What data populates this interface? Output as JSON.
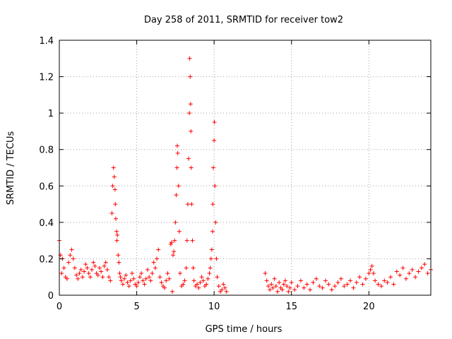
{
  "chart_data": {
    "type": "scatter",
    "title": "Day 258 of 2011, SRMTID for receiver tow2",
    "xlabel": "GPS time / hours",
    "ylabel": "SRMTID / TECUs",
    "xlim": [
      0,
      24
    ],
    "ylim": [
      0,
      1.4
    ],
    "xticks": [
      0,
      5,
      10,
      15,
      20
    ],
    "xtick_labels": [
      "0",
      "5",
      "10",
      "15",
      "20"
    ],
    "yticks": [
      0,
      0.2,
      0.4,
      0.6,
      0.8,
      1.0,
      1.2,
      1.4
    ],
    "ytick_labels": [
      "0",
      "0.2",
      "0.4",
      "0.6",
      "0.8",
      "1",
      "1.2",
      "1.4"
    ],
    "grid": true,
    "marker": "+",
    "series": [
      {
        "name": "tow2",
        "color": "#ff0000",
        "x": [
          0.0,
          0.08,
          0.15,
          0.2,
          0.3,
          0.4,
          0.5,
          0.6,
          0.7,
          0.8,
          0.9,
          1.0,
          1.1,
          1.2,
          1.3,
          1.4,
          1.5,
          1.6,
          1.7,
          1.8,
          1.9,
          2.0,
          2.1,
          2.2,
          2.3,
          2.4,
          2.5,
          2.6,
          2.7,
          2.8,
          2.9,
          3.0,
          3.1,
          3.2,
          3.3,
          3.4,
          3.45,
          3.5,
          3.55,
          3.6,
          3.62,
          3.65,
          3.7,
          3.72,
          3.75,
          3.8,
          3.85,
          3.9,
          3.95,
          4.0,
          4.1,
          4.2,
          4.3,
          4.4,
          4.5,
          4.6,
          4.7,
          4.8,
          4.9,
          5.0,
          5.1,
          5.2,
          5.3,
          5.4,
          5.5,
          5.6,
          5.7,
          5.8,
          5.9,
          6.0,
          6.1,
          6.2,
          6.3,
          6.4,
          6.5,
          6.6,
          6.7,
          6.8,
          6.9,
          7.0,
          7.1,
          7.2,
          7.25,
          7.3,
          7.35,
          7.4,
          7.45,
          7.5,
          7.55,
          7.6,
          7.62,
          7.65,
          7.7,
          7.75,
          7.8,
          7.9,
          8.0,
          8.1,
          8.2,
          8.25,
          8.3,
          8.35,
          8.4,
          8.42,
          8.45,
          8.48,
          8.5,
          8.52,
          8.55,
          8.6,
          8.65,
          8.7,
          8.8,
          8.9,
          9.0,
          9.1,
          9.2,
          9.3,
          9.4,
          9.5,
          9.6,
          9.7,
          9.75,
          9.8,
          9.85,
          9.9,
          9.92,
          9.95,
          10.0,
          10.02,
          10.05,
          10.1,
          10.15,
          10.2,
          10.3,
          10.4,
          10.5,
          10.6,
          10.7,
          10.8,
          13.3,
          13.4,
          13.5,
          13.6,
          13.7,
          13.8,
          13.9,
          14.0,
          14.1,
          14.2,
          14.3,
          14.4,
          14.5,
          14.6,
          14.7,
          14.8,
          14.9,
          15.0,
          15.2,
          15.4,
          15.6,
          15.8,
          16.0,
          16.2,
          16.4,
          16.6,
          16.8,
          17.0,
          17.2,
          17.4,
          17.6,
          17.8,
          18.0,
          18.2,
          18.4,
          18.6,
          18.8,
          19.0,
          19.2,
          19.4,
          19.6,
          19.8,
          20.0,
          20.1,
          20.2,
          20.3,
          20.4,
          20.6,
          20.8,
          21.0,
          21.2,
          21.4,
          21.6,
          21.8,
          22.0,
          22.2,
          22.4,
          22.6,
          22.8,
          23.0,
          23.2,
          23.4,
          23.6,
          23.8,
          24.0
        ],
        "y": [
          0.3,
          0.22,
          0.12,
          0.2,
          0.15,
          0.1,
          0.09,
          0.18,
          0.22,
          0.25,
          0.2,
          0.15,
          0.11,
          0.09,
          0.12,
          0.14,
          0.1,
          0.13,
          0.17,
          0.15,
          0.12,
          0.1,
          0.14,
          0.18,
          0.16,
          0.12,
          0.11,
          0.15,
          0.13,
          0.1,
          0.16,
          0.18,
          0.14,
          0.1,
          0.08,
          0.45,
          0.6,
          0.7,
          0.65,
          0.58,
          0.5,
          0.42,
          0.35,
          0.3,
          0.33,
          0.22,
          0.18,
          0.12,
          0.1,
          0.08,
          0.06,
          0.09,
          0.11,
          0.07,
          0.05,
          0.08,
          0.12,
          0.09,
          0.06,
          0.05,
          0.07,
          0.1,
          0.12,
          0.08,
          0.06,
          0.09,
          0.14,
          0.1,
          0.08,
          0.12,
          0.18,
          0.15,
          0.2,
          0.25,
          0.1,
          0.07,
          0.05,
          0.04,
          0.08,
          0.12,
          0.09,
          0.28,
          0.29,
          0.02,
          0.22,
          0.24,
          0.3,
          0.4,
          0.55,
          0.7,
          0.82,
          0.78,
          0.6,
          0.35,
          0.12,
          0.05,
          0.06,
          0.08,
          0.15,
          0.3,
          0.5,
          0.75,
          1.0,
          1.3,
          1.2,
          1.05,
          0.9,
          0.7,
          0.5,
          0.3,
          0.15,
          0.08,
          0.05,
          0.06,
          0.04,
          0.07,
          0.1,
          0.08,
          0.05,
          0.06,
          0.09,
          0.12,
          0.15,
          0.2,
          0.25,
          0.35,
          0.5,
          0.7,
          0.85,
          0.95,
          0.6,
          0.4,
          0.2,
          0.1,
          0.05,
          0.02,
          0.03,
          0.06,
          0.04,
          0.02,
          0.12,
          0.08,
          0.05,
          0.03,
          0.06,
          0.04,
          0.09,
          0.05,
          0.02,
          0.07,
          0.04,
          0.03,
          0.06,
          0.08,
          0.05,
          0.02,
          0.04,
          0.07,
          0.03,
          0.05,
          0.08,
          0.04,
          0.06,
          0.03,
          0.07,
          0.09,
          0.05,
          0.04,
          0.08,
          0.06,
          0.03,
          0.05,
          0.07,
          0.09,
          0.05,
          0.06,
          0.08,
          0.04,
          0.07,
          0.1,
          0.06,
          0.09,
          0.12,
          0.14,
          0.16,
          0.12,
          0.08,
          0.06,
          0.05,
          0.08,
          0.07,
          0.1,
          0.06,
          0.13,
          0.11,
          0.15,
          0.09,
          0.12,
          0.14,
          0.1,
          0.13,
          0.15,
          0.17,
          0.12,
          0.14
        ]
      }
    ]
  }
}
